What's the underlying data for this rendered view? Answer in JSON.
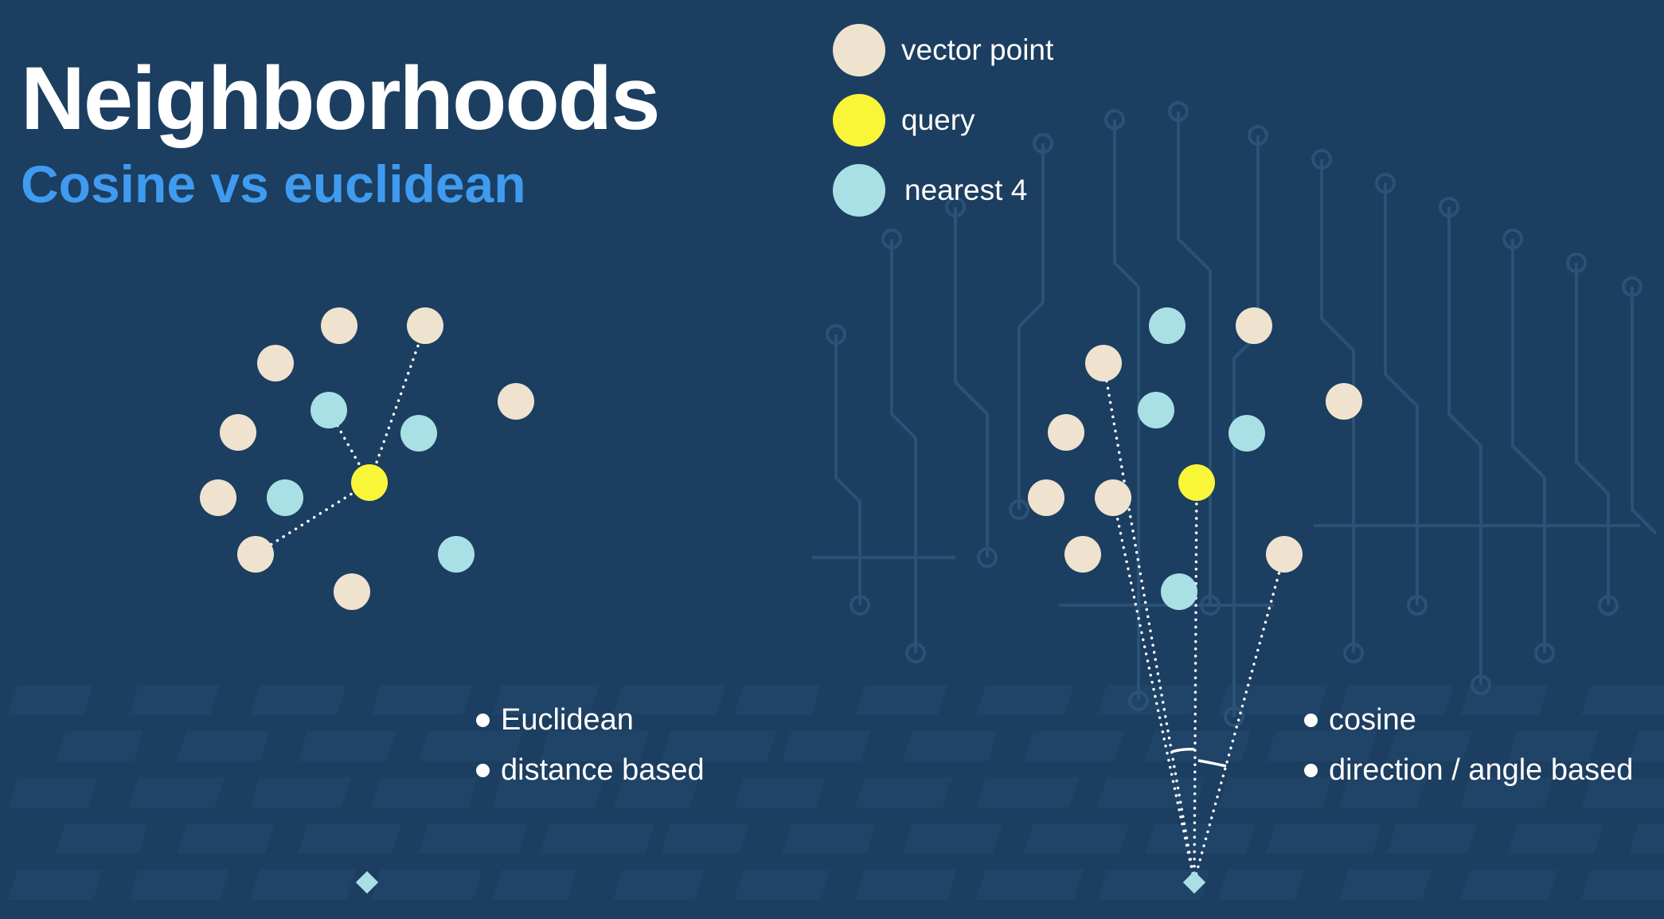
{
  "title": "Neighborhoods",
  "subtitle": "Cosine vs euclidean",
  "colors": {
    "background": "#1c3e60",
    "vector_point": "#efe3cf",
    "query": "#f9f63a",
    "nearest": "#a8e0e6",
    "accent": "#3f9bef"
  },
  "legend": [
    {
      "label": "vector point",
      "kind": "vector_point"
    },
    {
      "label": "query",
      "kind": "query"
    },
    {
      "label": "nearest 4",
      "kind": "nearest"
    }
  ],
  "euclidean": {
    "bullets": [
      "Euclidean",
      "distance based"
    ]
  },
  "cosine": {
    "bullets": [
      "cosine",
      "direction / angle based"
    ]
  }
}
